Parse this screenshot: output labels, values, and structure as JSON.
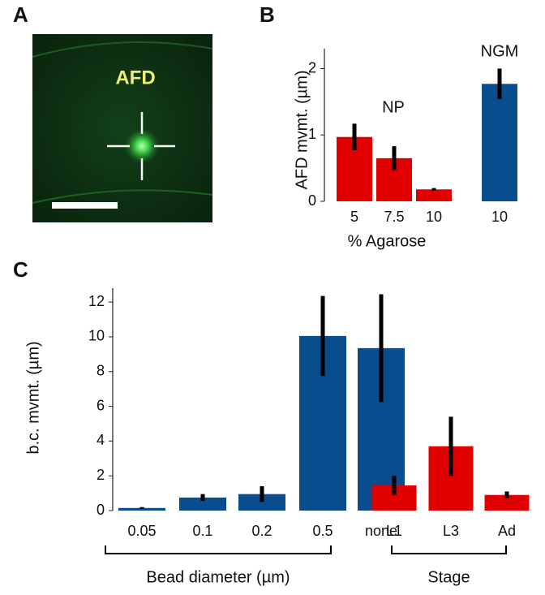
{
  "panel_a": {
    "label": "A",
    "annotation": "AFD"
  },
  "chart_data": [
    {
      "type": "bar",
      "panel_label": "B",
      "y_label": "AFD mvmt. (µm)",
      "x_label": "% Agarose",
      "categories": [
        "5",
        "7.5",
        "10",
        "10"
      ],
      "annotations": [
        "NP",
        "NGM"
      ],
      "series": [
        {
          "values": [
            0.97,
            0.65,
            0.18,
            1.77
          ],
          "errors": [
            0.2,
            0.18,
            0.02,
            0.23
          ],
          "colors": [
            "#e00000",
            "#e00000",
            "#e00000",
            "#0a4d8f"
          ]
        }
      ],
      "ylim": [
        0,
        2.3
      ],
      "yticks": [
        0,
        1,
        2
      ]
    },
    {
      "type": "bar",
      "panel_label": "C",
      "y_label": "b.c. mvmt. (µm)",
      "categories": [
        "0.05",
        "0.1",
        "0.2",
        "0.5",
        "none",
        "L1",
        "L3",
        "Ad"
      ],
      "group_labels": [
        "Bead diameter (µm)",
        "Stage"
      ],
      "series": [
        {
          "values": [
            0.15,
            0.75,
            0.95,
            10.05,
            9.35,
            1.45,
            3.7,
            0.9
          ],
          "errors": [
            0.05,
            0.2,
            0.45,
            2.3,
            3.1,
            0.55,
            1.7,
            0.2
          ],
          "colors": [
            "#0a4d8f",
            "#0a4d8f",
            "#0a4d8f",
            "#0a4d8f",
            "#0a4d8f",
            "#e00000",
            "#e00000",
            "#e00000"
          ]
        }
      ],
      "ylim": [
        0,
        12.8
      ],
      "yticks": [
        0,
        2,
        4,
        6,
        8,
        10,
        12
      ]
    }
  ]
}
